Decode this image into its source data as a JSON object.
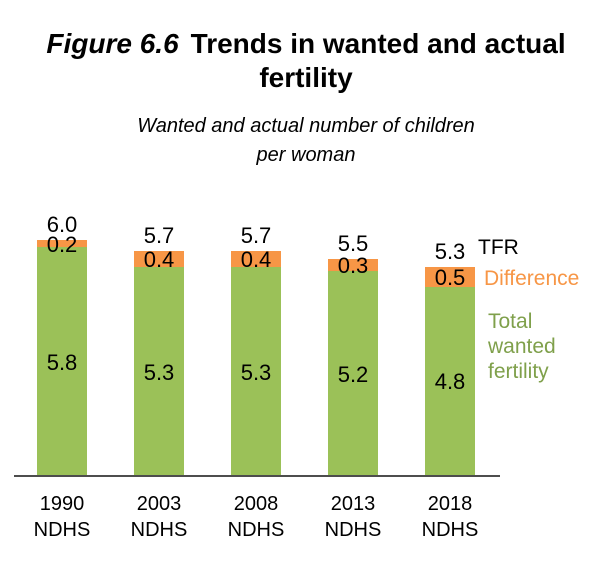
{
  "title": {
    "prefix": "Figure 6.6",
    "line1_rest": "Trends in wanted and actual",
    "line2": "fertility"
  },
  "subtitle": {
    "line1": "Wanted and actual number of children",
    "line2": "per woman"
  },
  "chart_data": {
    "type": "bar",
    "stacked": true,
    "title": "Figure 6.6 Trends in wanted and actual fertility",
    "subtitle": "Wanted and actual number of children per woman",
    "categories": [
      "1990 NDHS",
      "2003 NDHS",
      "2008 NDHS",
      "2013 NDHS",
      "2018 NDHS"
    ],
    "series": [
      {
        "name": "Total wanted fertility",
        "color": "#9BC158",
        "values": [
          5.8,
          5.3,
          5.3,
          5.2,
          4.8
        ]
      },
      {
        "name": "Difference",
        "color": "#F79646",
        "values": [
          0.2,
          0.4,
          0.4,
          0.3,
          0.5
        ]
      }
    ],
    "totals": {
      "name": "TFR",
      "values": [
        6.0,
        5.7,
        5.7,
        5.5,
        5.3
      ]
    },
    "legend": [
      {
        "label": "TFR",
        "color": "#000000"
      },
      {
        "label": "Difference",
        "color": "#F79646"
      },
      {
        "label": "Total wanted fertility",
        "color": "#7FA04B"
      }
    ],
    "xlabel": "",
    "ylabel": "",
    "ylim": [
      0,
      6.5
    ],
    "grid": false,
    "y_axis_visible": false,
    "legend_position": "right",
    "value_label_decimals": 1,
    "axis_line_color": "#4d4d4d"
  }
}
